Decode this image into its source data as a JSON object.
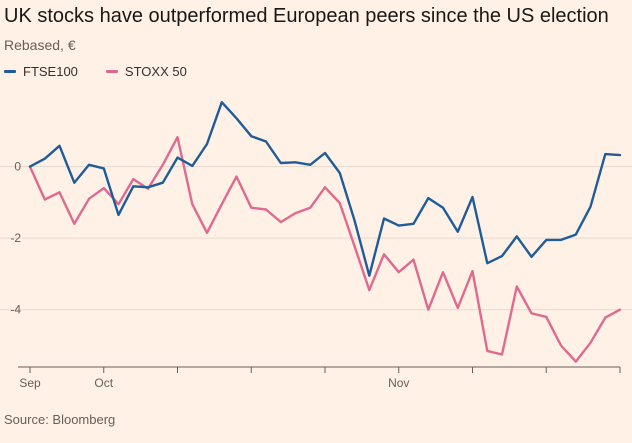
{
  "title": "UK stocks have outperformed European peers since the US election",
  "subtitle": "Rebased, €",
  "source": "Source: Bloomberg",
  "colors": {
    "background": "#FFF1E5",
    "grid": "#E6D9CE",
    "axis": "#66605C"
  },
  "chart_data": {
    "type": "line",
    "ylim": [
      -5.6,
      2.0
    ],
    "yticks": [
      0,
      -2,
      -4
    ],
    "ytick_labels": [
      "0",
      "-2",
      "-4"
    ],
    "xticks": [
      {
        "index": 0,
        "label": "Sep"
      },
      {
        "index": 5,
        "label": "Oct"
      },
      {
        "index": 10,
        "label": ""
      },
      {
        "index": 15,
        "label": ""
      },
      {
        "index": 20,
        "label": ""
      },
      {
        "index": 25,
        "label": "Nov"
      },
      {
        "index": 30,
        "label": ""
      },
      {
        "index": 35,
        "label": ""
      },
      {
        "index": 40,
        "label": ""
      }
    ],
    "legend": "top-left",
    "grid": "horizontal",
    "series": [
      {
        "name": "FTSE100",
        "color": "#1F5C99",
        "values": [
          0,
          0.22,
          0.58,
          -0.45,
          0.05,
          -0.05,
          -1.35,
          -0.55,
          -0.58,
          -0.45,
          0.25,
          0.02,
          0.63,
          1.8,
          1.35,
          0.85,
          0.7,
          0.1,
          0.12,
          0.05,
          0.38,
          -0.18,
          -1.5,
          -3.05,
          -1.45,
          -1.65,
          -1.6,
          -0.88,
          -1.15,
          -1.82,
          -0.85,
          -2.7,
          -2.5,
          -1.95,
          -2.52,
          -2.05,
          -2.05,
          -1.9,
          -1.12,
          0.35,
          0.32
        ]
      },
      {
        "name": "STOXX 50",
        "color": "#E06A8F",
        "values": [
          0,
          -0.92,
          -0.72,
          -1.6,
          -0.9,
          -0.6,
          -1.05,
          -0.35,
          -0.62,
          0.05,
          0.82,
          -1.05,
          -1.85,
          -1.05,
          -0.28,
          -1.15,
          -1.2,
          -1.55,
          -1.3,
          -1.15,
          -0.58,
          -1.02,
          -2.22,
          -3.45,
          -2.45,
          -2.95,
          -2.6,
          -4.0,
          -2.95,
          -3.95,
          -2.92,
          -5.15,
          -5.25,
          -3.35,
          -4.1,
          -4.2,
          -5.0,
          -5.45,
          -4.92,
          -4.22,
          -4.0
        ]
      }
    ]
  }
}
